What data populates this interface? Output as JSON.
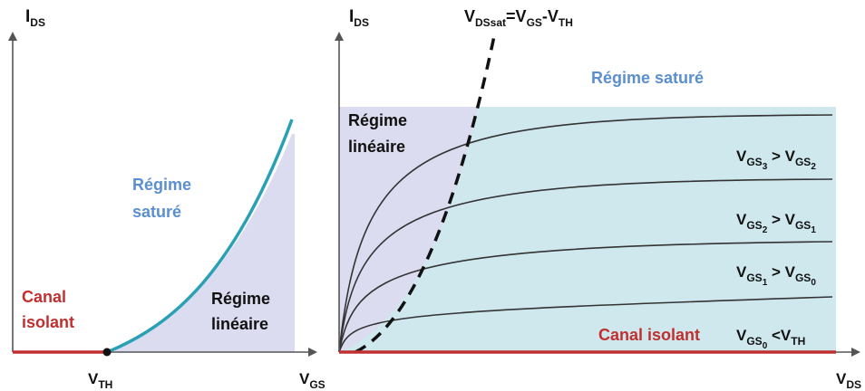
{
  "colors": {
    "axis": "#555555",
    "curve_left": "#2aa0b4",
    "linear_fill": "#dcdcf0",
    "saturated_fill": "#cfe8ee",
    "insulating": "#c03030",
    "blue_label": "#5b8fcf",
    "text": "#111111",
    "family_curves": "#333333"
  },
  "left_panel": {
    "y_axis_label": {
      "main": "I",
      "sub": "DS"
    },
    "x_axis_label": {
      "main": "V",
      "sub": "GS"
    },
    "threshold_label": {
      "main": "V",
      "sub": "TH"
    },
    "regime_saturated": [
      "Régime",
      "saturé"
    ],
    "regime_linear": [
      "Régime",
      "linéaire"
    ],
    "insulating_channel": [
      "Canal",
      "isolant"
    ]
  },
  "right_panel": {
    "y_axis_label": {
      "main": "I",
      "sub": "DS"
    },
    "x_axis_label": {
      "main": "V",
      "sub": "DS"
    },
    "vdssat_label": {
      "a": "V",
      "a_sub": "DSsat",
      "eq": "=V",
      "b_sub": "GS",
      "minus": "-V",
      "c_sub": "TH"
    },
    "regime_saturated": "Régime saturé",
    "regime_linear": [
      "Régime",
      "linéaire"
    ],
    "insulating_channel": "Canal isolant",
    "curve_labels": [
      {
        "left": "V",
        "left_sub": "GS",
        "left_subsub": "3",
        "op": " > ",
        "right": "V",
        "right_sub": "GS",
        "right_subsub": "2"
      },
      {
        "left": "V",
        "left_sub": "GS",
        "left_subsub": "2",
        "op": " > ",
        "right": "V",
        "right_sub": "GS",
        "right_subsub": "1"
      },
      {
        "left": "V",
        "left_sub": "GS",
        "left_subsub": "1",
        "op": " > ",
        "right": "V",
        "right_sub": "GS",
        "right_subsub": "0"
      },
      {
        "left": "V",
        "left_sub": "GS",
        "left_subsub": "0",
        "op": " <",
        "right": "V",
        "right_sub": "TH",
        "right_subsub": ""
      }
    ]
  }
}
